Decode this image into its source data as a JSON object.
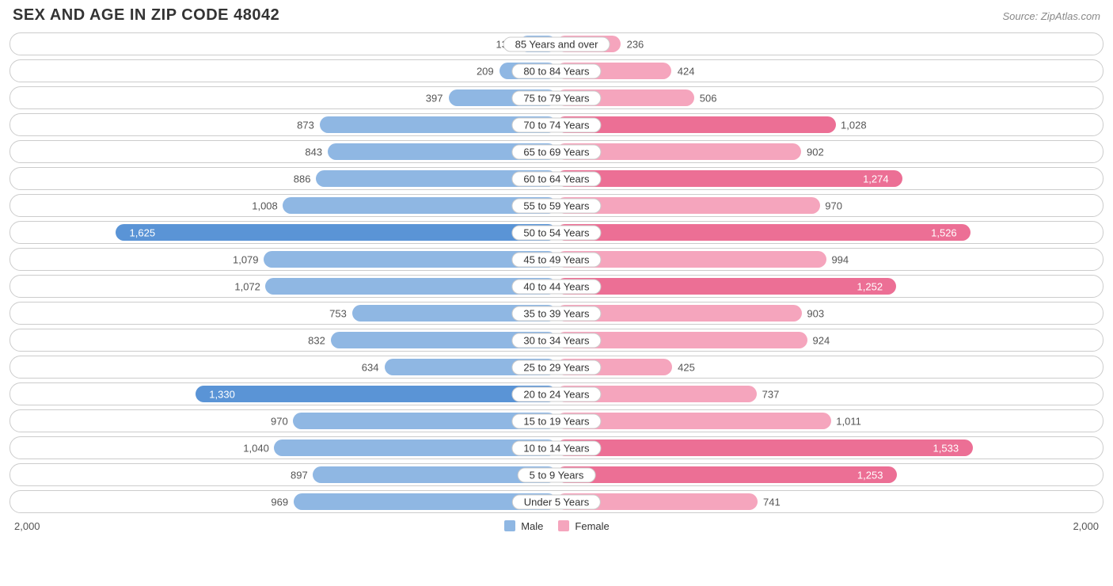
{
  "header": {
    "title": "SEX AND AGE IN ZIP CODE 48042",
    "source": "Source: ZipAtlas.com"
  },
  "chart": {
    "type": "population-pyramid",
    "axis_max": 2000,
    "axis_label_left": "2,000",
    "axis_label_right": "2,000",
    "track_border_color": "#cccccc",
    "background_color": "#ffffff",
    "label_fontsize": 13,
    "title_fontsize": 20,
    "male": {
      "label": "Male",
      "fill_light": "#8fb7e3",
      "fill_dark": "#5a94d6",
      "text_color_outside": "#555555",
      "text_color_inside": "#ffffff"
    },
    "female": {
      "label": "Female",
      "fill_light": "#f5a5bd",
      "fill_dark": "#ec6f95",
      "text_color_outside": "#555555",
      "text_color_inside": "#ffffff"
    },
    "rows": [
      {
        "category": "85 Years and over",
        "male": 137,
        "male_label": "137",
        "male_shade": "light",
        "male_inside": false,
        "female": 236,
        "female_label": "236",
        "female_shade": "light",
        "female_inside": false
      },
      {
        "category": "80 to 84 Years",
        "male": 209,
        "male_label": "209",
        "male_shade": "light",
        "male_inside": false,
        "female": 424,
        "female_label": "424",
        "female_shade": "light",
        "female_inside": false
      },
      {
        "category": "75 to 79 Years",
        "male": 397,
        "male_label": "397",
        "male_shade": "light",
        "male_inside": false,
        "female": 506,
        "female_label": "506",
        "female_shade": "light",
        "female_inside": false
      },
      {
        "category": "70 to 74 Years",
        "male": 873,
        "male_label": "873",
        "male_shade": "light",
        "male_inside": false,
        "female": 1028,
        "female_label": "1,028",
        "female_shade": "dark",
        "female_inside": false
      },
      {
        "category": "65 to 69 Years",
        "male": 843,
        "male_label": "843",
        "male_shade": "light",
        "male_inside": false,
        "female": 902,
        "female_label": "902",
        "female_shade": "light",
        "female_inside": false
      },
      {
        "category": "60 to 64 Years",
        "male": 886,
        "male_label": "886",
        "male_shade": "light",
        "male_inside": false,
        "female": 1274,
        "female_label": "1,274",
        "female_shade": "dark",
        "female_inside": true
      },
      {
        "category": "55 to 59 Years",
        "male": 1008,
        "male_label": "1,008",
        "male_shade": "light",
        "male_inside": false,
        "female": 970,
        "female_label": "970",
        "female_shade": "light",
        "female_inside": false
      },
      {
        "category": "50 to 54 Years",
        "male": 1625,
        "male_label": "1,625",
        "male_shade": "dark",
        "male_inside": true,
        "female": 1526,
        "female_label": "1,526",
        "female_shade": "dark",
        "female_inside": true
      },
      {
        "category": "45 to 49 Years",
        "male": 1079,
        "male_label": "1,079",
        "male_shade": "light",
        "male_inside": false,
        "female": 994,
        "female_label": "994",
        "female_shade": "light",
        "female_inside": false
      },
      {
        "category": "40 to 44 Years",
        "male": 1072,
        "male_label": "1,072",
        "male_shade": "light",
        "male_inside": false,
        "female": 1252,
        "female_label": "1,252",
        "female_shade": "dark",
        "female_inside": true
      },
      {
        "category": "35 to 39 Years",
        "male": 753,
        "male_label": "753",
        "male_shade": "light",
        "male_inside": false,
        "female": 903,
        "female_label": "903",
        "female_shade": "light",
        "female_inside": false
      },
      {
        "category": "30 to 34 Years",
        "male": 832,
        "male_label": "832",
        "male_shade": "light",
        "male_inside": false,
        "female": 924,
        "female_label": "924",
        "female_shade": "light",
        "female_inside": false
      },
      {
        "category": "25 to 29 Years",
        "male": 634,
        "male_label": "634",
        "male_shade": "light",
        "male_inside": false,
        "female": 425,
        "female_label": "425",
        "female_shade": "light",
        "female_inside": false
      },
      {
        "category": "20 to 24 Years",
        "male": 1330,
        "male_label": "1,330",
        "male_shade": "dark",
        "male_inside": true,
        "female": 737,
        "female_label": "737",
        "female_shade": "light",
        "female_inside": false
      },
      {
        "category": "15 to 19 Years",
        "male": 970,
        "male_label": "970",
        "male_shade": "light",
        "male_inside": false,
        "female": 1011,
        "female_label": "1,011",
        "female_shade": "light",
        "female_inside": false
      },
      {
        "category": "10 to 14 Years",
        "male": 1040,
        "male_label": "1,040",
        "male_shade": "light",
        "male_inside": false,
        "female": 1533,
        "female_label": "1,533",
        "female_shade": "dark",
        "female_inside": true
      },
      {
        "category": "5 to 9 Years",
        "male": 897,
        "male_label": "897",
        "male_shade": "light",
        "male_inside": false,
        "female": 1253,
        "female_label": "1,253",
        "female_shade": "dark",
        "female_inside": true
      },
      {
        "category": "Under 5 Years",
        "male": 969,
        "male_label": "969",
        "male_shade": "light",
        "male_inside": false,
        "female": 741,
        "female_label": "741",
        "female_shade": "light",
        "female_inside": false
      }
    ]
  }
}
